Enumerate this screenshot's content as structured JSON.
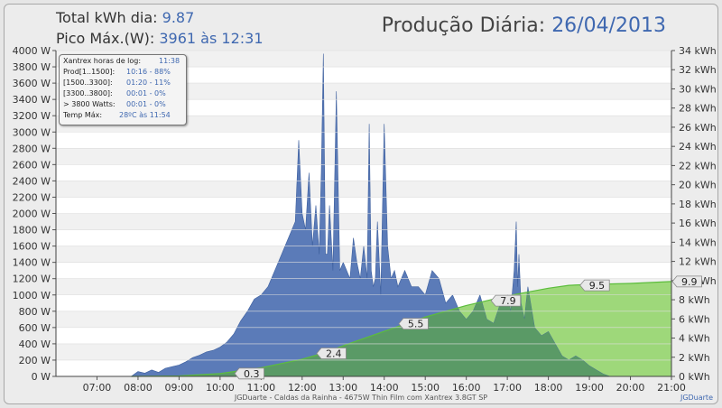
{
  "header": {
    "total_label": "Total kWh dia:",
    "total_value": "9.87",
    "peak_label": "Pico Máx.(W):",
    "peak_value": "3961 às 12:31",
    "title_label": "Produção Diária:",
    "title_date": "26/04/2013"
  },
  "infobox": [
    {
      "label": "Xantrex horas de log:",
      "value": "11:38"
    },
    {
      "label": "Prod[1..1500]:",
      "value": "10:16 - 88%"
    },
    {
      "label": "[1500..3300]:",
      "value": "01:20 - 11%"
    },
    {
      "label": "[3300..3800]:",
      "value": "00:01 - 0%"
    },
    {
      "label": "> 3800 Watts:",
      "value": "00:01 - 0%"
    },
    {
      "label": "Temp Máx:",
      "value": "28ºC às 11:54"
    }
  ],
  "footer": "JGDuarte  -  Caldas da Rainha  -  4675W Thin Film com Xantrex 3.8GT SP",
  "credit": "JGDuarte",
  "colors": {
    "power_fill": "#5b7bb8",
    "power_line": "#3d5f9e",
    "energy_fill": "#9ed87a",
    "energy_line": "#5cbd3c",
    "overlap": "#5a9a66",
    "grid": "#ffffff",
    "stripe": "#f1f1f1"
  },
  "chart_data": {
    "type": "area",
    "x_axis": {
      "range": [
        "06:00",
        "21:00"
      ],
      "ticks": [
        "07:00",
        "08:00",
        "09:00",
        "10:00",
        "11:00",
        "12:00",
        "13:00",
        "14:00",
        "15:00",
        "16:00",
        "17:00",
        "18:00",
        "19:00",
        "20:00",
        "21:00"
      ]
    },
    "y_left": {
      "unit": "W",
      "range": [
        0,
        4000
      ],
      "ticks": [
        "0 W",
        "200 W",
        "400 W",
        "600 W",
        "800 W",
        "1000 W",
        "1200 W",
        "1400 W",
        "1600 W",
        "1800 W",
        "2000 W",
        "2200 W",
        "2400 W",
        "2600 W",
        "2800 W",
        "3000 W",
        "3200 W",
        "3400 W",
        "3600 W",
        "3800 W",
        "4000 W"
      ]
    },
    "y_right": {
      "unit": "kWh",
      "range": [
        0,
        34
      ],
      "ticks": [
        "0 kWh",
        "2 kWh",
        "4 kWh",
        "6 kWh",
        "8 kWh",
        "10 kWh",
        "12 kWh",
        "14 kWh",
        "16 kWh",
        "18 kWh",
        "20 kWh",
        "22 kWh",
        "24 kWh",
        "26 kWh",
        "28 kWh",
        "30 kWh",
        "32 kWh",
        "34 kWh"
      ]
    },
    "grid": true,
    "series": [
      {
        "axis": "left",
        "x": [
          "07:50",
          "08:00",
          "08:10",
          "08:20",
          "08:30",
          "08:40",
          "08:50",
          "09:00",
          "09:10",
          "09:20",
          "09:30",
          "09:40",
          "09:50",
          "10:00",
          "10:10",
          "10:20",
          "10:30",
          "10:40",
          "10:50",
          "11:00",
          "11:10",
          "11:20",
          "11:30",
          "11:40",
          "11:50",
          "11:55",
          "12:00",
          "12:05",
          "12:10",
          "12:15",
          "12:20",
          "12:25",
          "12:28",
          "12:31",
          "12:34",
          "12:37",
          "12:40",
          "12:45",
          "12:50",
          "12:55",
          "13:00",
          "13:05",
          "13:10",
          "13:15",
          "13:20",
          "13:25",
          "13:30",
          "13:35",
          "13:38",
          "13:41",
          "13:44",
          "13:47",
          "13:50",
          "13:55",
          "14:00",
          "14:05",
          "14:10",
          "14:15",
          "14:20",
          "14:30",
          "14:40",
          "14:50",
          "15:00",
          "15:10",
          "15:20",
          "15:30",
          "15:40",
          "15:50",
          "16:00",
          "16:10",
          "16:20",
          "16:30",
          "16:40",
          "16:50",
          "17:00",
          "17:05",
          "17:10",
          "17:13",
          "17:15",
          "17:17",
          "17:20",
          "17:25",
          "17:30",
          "17:40",
          "17:50",
          "18:00",
          "18:10",
          "18:20",
          "18:30",
          "18:40",
          "18:50",
          "19:00",
          "19:10",
          "19:20",
          "19:30"
        ],
        "values": [
          0,
          60,
          40,
          80,
          50,
          100,
          120,
          140,
          180,
          230,
          260,
          300,
          320,
          360,
          420,
          520,
          680,
          800,
          950,
          1000,
          1100,
          1300,
          1500,
          1700,
          1900,
          2900,
          2000,
          1800,
          2500,
          1600,
          2100,
          1500,
          2500,
          3961,
          1500,
          1500,
          2100,
          1300,
          3500,
          1300,
          1400,
          1300,
          1200,
          1700,
          1400,
          1200,
          1600,
          1200,
          3100,
          1300,
          1100,
          1200,
          1900,
          1000,
          3100,
          1600,
          1200,
          1300,
          1100,
          1300,
          1100,
          1100,
          1000,
          1300,
          1200,
          900,
          1000,
          800,
          700,
          800,
          1000,
          700,
          650,
          900,
          1000,
          800,
          1300,
          1900,
          1100,
          1500,
          900,
          700,
          1100,
          600,
          500,
          550,
          400,
          250,
          200,
          250,
          200,
          130,
          80,
          30,
          0
        ]
      },
      {
        "axis": "right",
        "x": [
          "07:50",
          "09:00",
          "10:00",
          "11:00",
          "12:00",
          "12:30",
          "13:00",
          "14:00",
          "15:00",
          "16:00",
          "17:00",
          "18:00",
          "18:30",
          "19:00",
          "20:00",
          "21:00"
        ],
        "values": [
          0,
          0.05,
          0.3,
          0.9,
          1.8,
          2.4,
          3.2,
          4.7,
          6.2,
          7.4,
          8.4,
          9.2,
          9.5,
          9.6,
          9.7,
          9.9
        ],
        "labels": [
          {
            "x": "10:20",
            "y": 0.3,
            "text": "0.3"
          },
          {
            "x": "12:20",
            "y": 2.4,
            "text": "2.4"
          },
          {
            "x": "14:20",
            "y": 5.5,
            "text": "5.5"
          },
          {
            "x": "16:35",
            "y": 7.9,
            "text": "7.9"
          },
          {
            "x": "18:45",
            "y": 9.5,
            "text": "9.5"
          },
          {
            "x": "21:00",
            "y": 9.9,
            "text": "9.9"
          }
        ]
      }
    ]
  }
}
